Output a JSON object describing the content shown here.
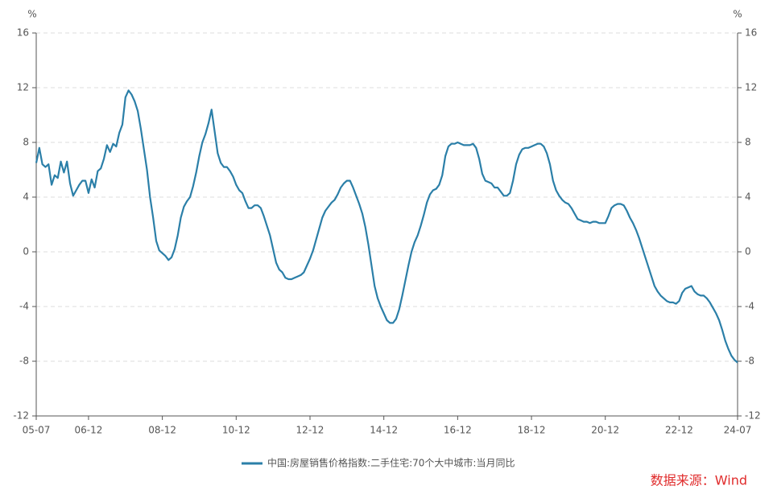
{
  "chart_data": {
    "type": "line",
    "y_unit": "%",
    "y2_unit": "%",
    "source": "数据来源：Wind",
    "categories": [
      "05-07",
      null,
      null,
      null,
      null,
      null,
      null,
      null,
      null,
      null,
      null,
      null,
      null,
      null,
      null,
      null,
      null,
      "06-12",
      null,
      null,
      null,
      null,
      null,
      null,
      null,
      null,
      null,
      null,
      null,
      null,
      null,
      null,
      null,
      null,
      null,
      null,
      null,
      null,
      null,
      null,
      null,
      "08-12",
      null,
      null,
      null,
      null,
      null,
      null,
      null,
      null,
      null,
      null,
      null,
      null,
      null,
      null,
      null,
      null,
      null,
      null,
      null,
      null,
      null,
      null,
      null,
      "10-12",
      null,
      null,
      null,
      null,
      null,
      null,
      null,
      null,
      null,
      null,
      null,
      null,
      null,
      null,
      null,
      null,
      null,
      null,
      null,
      null,
      null,
      null,
      null,
      "12-12",
      null,
      null,
      null,
      null,
      null,
      null,
      null,
      null,
      null,
      null,
      null,
      null,
      null,
      null,
      null,
      null,
      null,
      null,
      null,
      null,
      null,
      null,
      null,
      "14-12",
      null,
      null,
      null,
      null,
      null,
      null,
      null,
      null,
      null,
      null,
      null,
      null,
      null,
      null,
      null,
      null,
      null,
      null,
      null,
      null,
      null,
      null,
      null,
      "16-12",
      null,
      null,
      null,
      null,
      null,
      null,
      null,
      null,
      null,
      null,
      null,
      null,
      null,
      null,
      null,
      null,
      null,
      null,
      null,
      null,
      null,
      null,
      null,
      "18-12",
      null,
      null,
      null,
      null,
      null,
      null,
      null,
      null,
      null,
      null,
      null,
      null,
      null,
      null,
      null,
      null,
      null,
      null,
      null,
      null,
      null,
      null,
      null,
      "20-12",
      null,
      null,
      null,
      null,
      null,
      null,
      null,
      null,
      null,
      null,
      null,
      null,
      null,
      null,
      null,
      null,
      null,
      null,
      null,
      null,
      null,
      null,
      null,
      "22-12",
      null,
      null,
      null,
      null,
      null,
      null,
      null,
      null,
      null,
      null,
      null,
      null,
      null,
      null,
      null,
      null,
      null,
      null,
      "24-07"
    ],
    "series": [
      {
        "name": "中国:房屋销售价格指数:二手住宅:70个大中城市:当月同比",
        "color": "#2b7fa8",
        "values": [
          6.5,
          7.6,
          6.4,
          6.2,
          6.4,
          4.9,
          5.6,
          5.4,
          6.6,
          5.8,
          6.6,
          5.0,
          4.1,
          4.5,
          4.9,
          5.2,
          5.2,
          4.3,
          5.3,
          4.7,
          5.9,
          6.1,
          6.8,
          7.8,
          7.3,
          7.9,
          7.7,
          8.7,
          9.3,
          11.3,
          11.8,
          11.5,
          11.0,
          10.3,
          9.0,
          7.5,
          6.0,
          4.0,
          2.5,
          0.8,
          0.1,
          -0.1,
          -0.3,
          -0.6,
          -0.4,
          0.2,
          1.2,
          2.5,
          3.3,
          3.7,
          4.0,
          4.8,
          5.8,
          7.0,
          8.0,
          8.6,
          9.4,
          10.4,
          8.8,
          7.2,
          6.5,
          6.2,
          6.2,
          5.9,
          5.5,
          4.9,
          4.5,
          4.3,
          3.7,
          3.2,
          3.2,
          3.4,
          3.4,
          3.2,
          2.6,
          1.9,
          1.2,
          0.2,
          -0.8,
          -1.3,
          -1.5,
          -1.9,
          -2.0,
          -2.0,
          -1.9,
          -1.8,
          -1.7,
          -1.5,
          -1.0,
          -0.5,
          0.1,
          0.9,
          1.7,
          2.5,
          3.0,
          3.3,
          3.6,
          3.8,
          4.2,
          4.7,
          5.0,
          5.2,
          5.2,
          4.7,
          4.1,
          3.5,
          2.8,
          1.8,
          0.5,
          -1.0,
          -2.5,
          -3.4,
          -4.0,
          -4.5,
          -5.0,
          -5.2,
          -5.2,
          -4.9,
          -4.2,
          -3.2,
          -2.1,
          -1.0,
          0.0,
          0.7,
          1.2,
          1.9,
          2.7,
          3.6,
          4.2,
          4.5,
          4.6,
          4.9,
          5.6,
          7.0,
          7.7,
          7.9,
          7.9,
          8.0,
          7.9,
          7.8,
          7.8,
          7.8,
          7.9,
          7.6,
          6.8,
          5.7,
          5.2,
          5.1,
          5.0,
          4.7,
          4.7,
          4.4,
          4.1,
          4.1,
          4.3,
          5.2,
          6.4,
          7.1,
          7.5,
          7.6,
          7.6,
          7.7,
          7.8,
          7.9,
          7.9,
          7.7,
          7.2,
          6.4,
          5.2,
          4.5,
          4.1,
          3.8,
          3.6,
          3.5,
          3.2,
          2.8,
          2.4,
          2.3,
          2.2,
          2.2,
          2.1,
          2.2,
          2.2,
          2.1,
          2.1,
          2.1,
          2.6,
          3.2,
          3.4,
          3.5,
          3.5,
          3.4,
          3.0,
          2.5,
          2.1,
          1.6,
          1.0,
          0.3,
          -0.4,
          -1.1,
          -1.8,
          -2.5,
          -2.9,
          -3.2,
          -3.4,
          -3.6,
          -3.7,
          -3.7,
          -3.8,
          -3.6,
          -3.0,
          -2.7,
          -2.6,
          -2.5,
          -2.9,
          -3.1,
          -3.2,
          -3.2,
          -3.4,
          -3.7,
          -4.1,
          -4.5,
          -5.0,
          -5.7,
          -6.5,
          -7.1,
          -7.6,
          -7.9,
          -8.1
        ]
      }
    ],
    "ylim": [
      -12,
      16
    ],
    "yticks": [
      -12,
      -8,
      -4,
      0,
      4,
      8,
      12,
      16
    ],
    "y2lim": [
      -12,
      16
    ],
    "y2ticks": [
      -12,
      -8,
      -4,
      0,
      4,
      8,
      12,
      16
    ],
    "grid": true,
    "legend": "bottom"
  }
}
